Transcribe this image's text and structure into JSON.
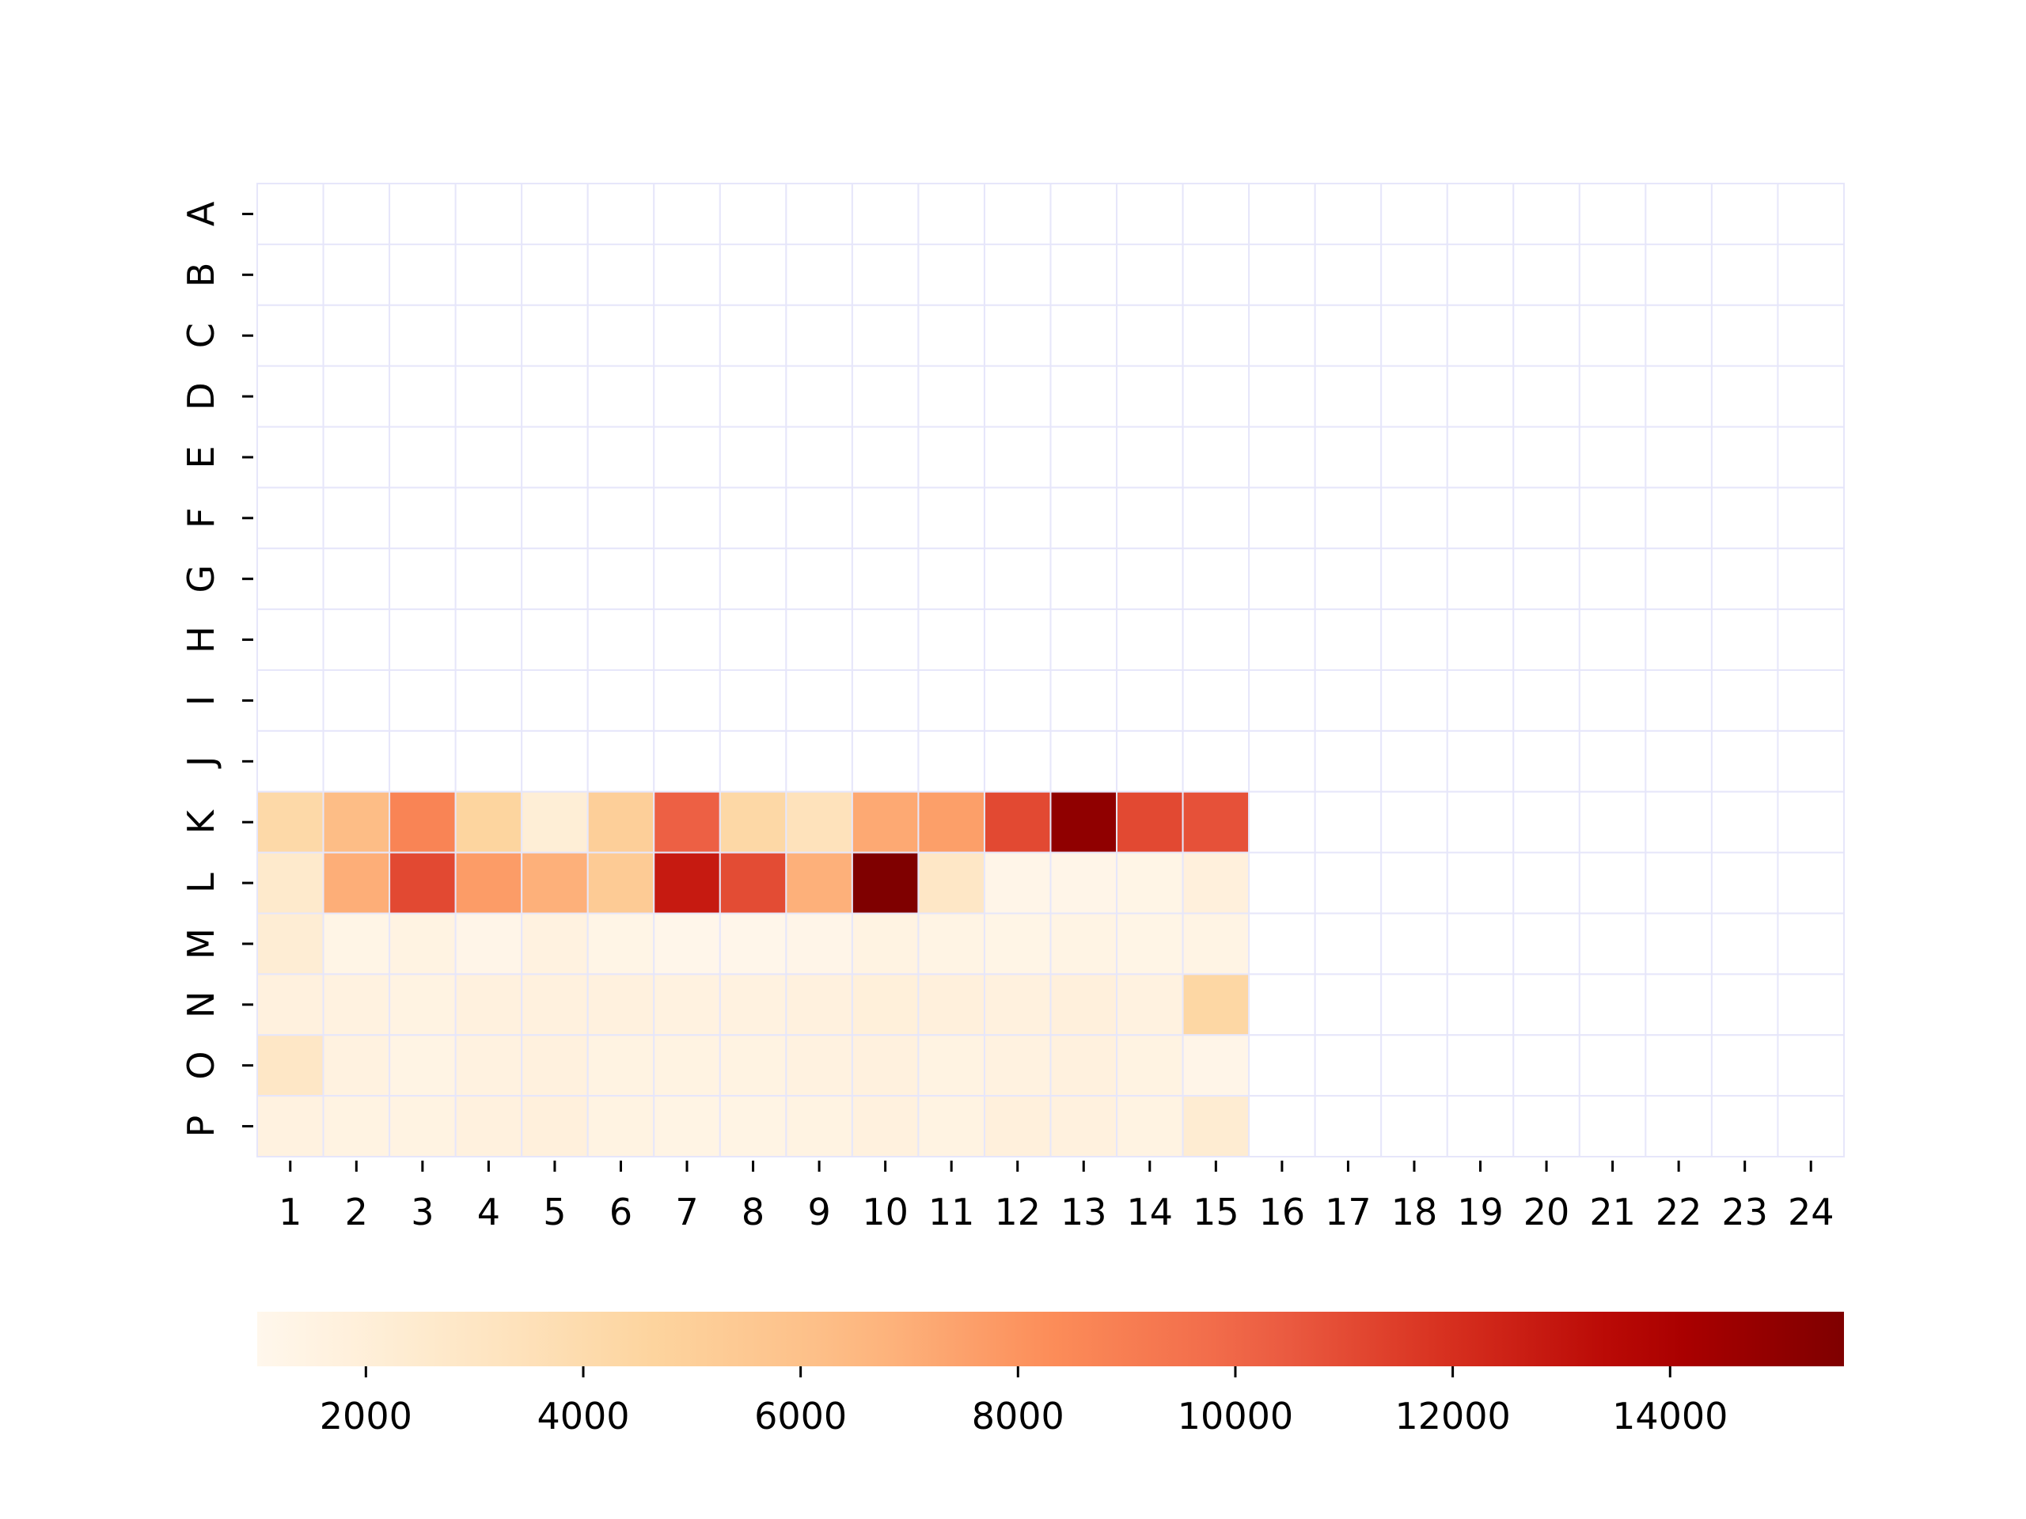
{
  "chart_data": {
    "type": "heatmap",
    "title": "",
    "xlabel": "",
    "ylabel": "",
    "x_categories": [
      "1",
      "2",
      "3",
      "4",
      "5",
      "6",
      "7",
      "8",
      "9",
      "10",
      "11",
      "12",
      "13",
      "14",
      "15",
      "16",
      "17",
      "18",
      "19",
      "20",
      "21",
      "22",
      "23",
      "24"
    ],
    "y_categories": [
      "A",
      "B",
      "C",
      "D",
      "E",
      "F",
      "G",
      "H",
      "I",
      "J",
      "K",
      "L",
      "M",
      "N",
      "O",
      "P"
    ],
    "values": [
      [
        null,
        null,
        null,
        null,
        null,
        null,
        null,
        null,
        null,
        null,
        null,
        null,
        null,
        null,
        null,
        null,
        null,
        null,
        null,
        null,
        null,
        null,
        null,
        null
      ],
      [
        null,
        null,
        null,
        null,
        null,
        null,
        null,
        null,
        null,
        null,
        null,
        null,
        null,
        null,
        null,
        null,
        null,
        null,
        null,
        null,
        null,
        null,
        null,
        null
      ],
      [
        null,
        null,
        null,
        null,
        null,
        null,
        null,
        null,
        null,
        null,
        null,
        null,
        null,
        null,
        null,
        null,
        null,
        null,
        null,
        null,
        null,
        null,
        null,
        null
      ],
      [
        null,
        null,
        null,
        null,
        null,
        null,
        null,
        null,
        null,
        null,
        null,
        null,
        null,
        null,
        null,
        null,
        null,
        null,
        null,
        null,
        null,
        null,
        null,
        null
      ],
      [
        null,
        null,
        null,
        null,
        null,
        null,
        null,
        null,
        null,
        null,
        null,
        null,
        null,
        null,
        null,
        null,
        null,
        null,
        null,
        null,
        null,
        null,
        null,
        null
      ],
      [
        null,
        null,
        null,
        null,
        null,
        null,
        null,
        null,
        null,
        null,
        null,
        null,
        null,
        null,
        null,
        null,
        null,
        null,
        null,
        null,
        null,
        null,
        null,
        null
      ],
      [
        null,
        null,
        null,
        null,
        null,
        null,
        null,
        null,
        null,
        null,
        null,
        null,
        null,
        null,
        null,
        null,
        null,
        null,
        null,
        null,
        null,
        null,
        null,
        null
      ],
      [
        null,
        null,
        null,
        null,
        null,
        null,
        null,
        null,
        null,
        null,
        null,
        null,
        null,
        null,
        null,
        null,
        null,
        null,
        null,
        null,
        null,
        null,
        null,
        null
      ],
      [
        null,
        null,
        null,
        null,
        null,
        null,
        null,
        null,
        null,
        null,
        null,
        null,
        null,
        null,
        null,
        null,
        null,
        null,
        null,
        null,
        null,
        null,
        null,
        null
      ],
      [
        null,
        null,
        null,
        null,
        null,
        null,
        null,
        null,
        null,
        null,
        null,
        null,
        null,
        null,
        null,
        null,
        null,
        null,
        null,
        null,
        null,
        null,
        null,
        null
      ],
      [
        4200,
        6300,
        8700,
        4600,
        2100,
        5000,
        10300,
        4300,
        3400,
        7200,
        7600,
        11100,
        15000,
        11100,
        10800,
        null,
        null,
        null,
        null,
        null,
        null,
        null,
        null,
        null
      ],
      [
        2600,
        7000,
        11100,
        7700,
        6900,
        5300,
        12800,
        11000,
        6900,
        15600,
        2900,
        1200,
        1200,
        1300,
        1800,
        null,
        null,
        null,
        null,
        null,
        null,
        null,
        null,
        null
      ],
      [
        2200,
        1300,
        1500,
        1200,
        1600,
        1300,
        1100,
        1100,
        1200,
        1500,
        1400,
        1300,
        1400,
        1300,
        1400,
        null,
        null,
        null,
        null,
        null,
        null,
        null,
        null,
        null
      ],
      [
        1700,
        1600,
        1500,
        1700,
        1700,
        1700,
        1600,
        1600,
        1700,
        1900,
        1800,
        1700,
        1800,
        1600,
        4400,
        null,
        null,
        null,
        null,
        null,
        null,
        null,
        null,
        null
      ],
      [
        2900,
        1600,
        1400,
        1600,
        1700,
        1500,
        1500,
        1500,
        1600,
        1700,
        1500,
        1600,
        1700,
        1500,
        1200,
        null,
        null,
        null,
        null,
        null,
        null,
        null,
        null,
        null
      ],
      [
        1600,
        1500,
        1500,
        1700,
        1800,
        1500,
        1400,
        1400,
        1500,
        1700,
        1500,
        1800,
        1700,
        1500,
        2300,
        null,
        null,
        null,
        null,
        null,
        null,
        null,
        null,
        null
      ]
    ],
    "colorbar": {
      "colormap": "OrRd",
      "vmin": 1000,
      "vmax": 15600,
      "ticks": [
        2000,
        4000,
        6000,
        8000,
        10000,
        12000,
        14000
      ],
      "orientation": "horizontal",
      "placement": "bottom"
    },
    "missing_color": "#ffffff",
    "grid_line_color": "#e6e6fa",
    "grid": true,
    "legend": "none"
  }
}
